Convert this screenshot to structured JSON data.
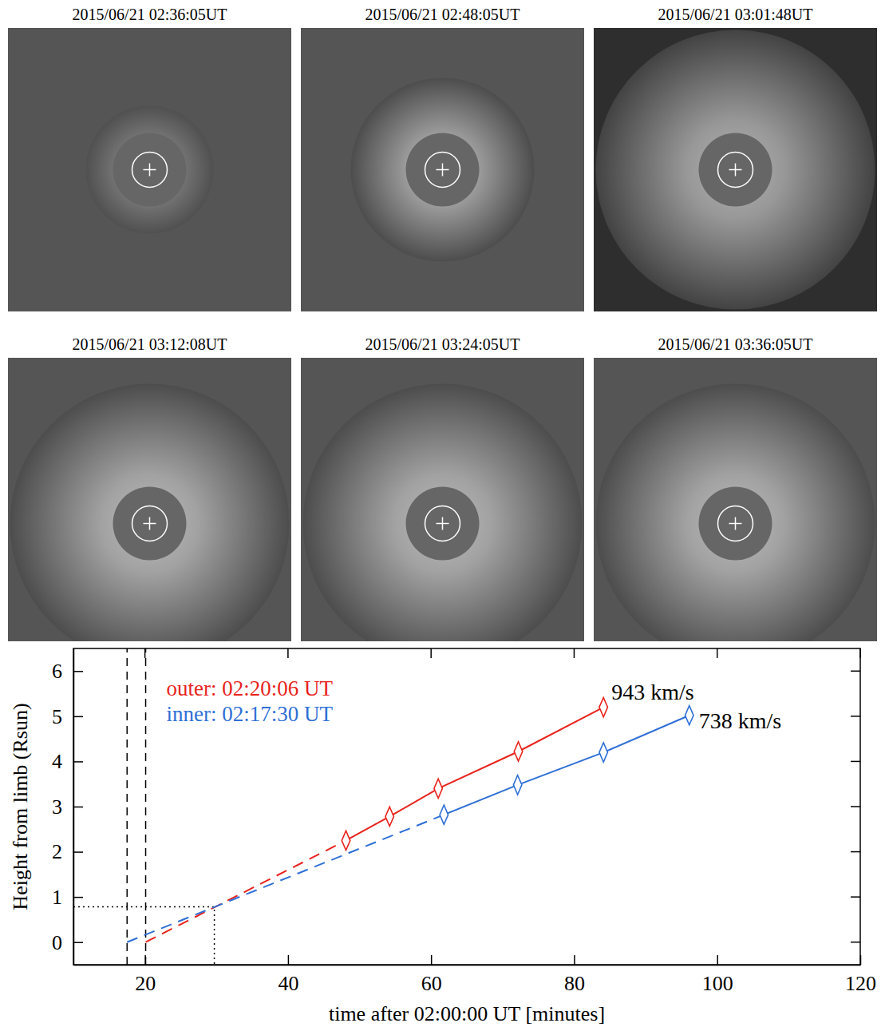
{
  "images": [
    {
      "title": "2015/06/21 02:36:05UT"
    },
    {
      "title": "2015/06/21 02:48:05UT"
    },
    {
      "title": "2015/06/21 03:01:48UT"
    },
    {
      "title": "2015/06/21 03:12:08UT"
    },
    {
      "title": "2015/06/21 03:24:05UT"
    },
    {
      "title": "2015/06/21 03:36:05UT"
    }
  ],
  "chart_data": {
    "type": "line",
    "xlabel": "time after 02:00:00 UT [minutes]",
    "ylabel": "Height from limb (Rsun)",
    "xlim": [
      10,
      120
    ],
    "xticks": [
      20,
      40,
      60,
      80,
      100,
      120
    ],
    "ylim": [
      -0.5,
      6.5
    ],
    "yticks": [
      0,
      1,
      2,
      3,
      4,
      5,
      6
    ],
    "legend": "upper left",
    "series": [
      {
        "name": "outer: 02:20:06 UT",
        "color": "#e8231c",
        "marker": "diamond",
        "line_style": "solid",
        "x": [
          48.1,
          54.2,
          61.0,
          72.2,
          84.1
        ],
        "values": [
          2.25,
          2.78,
          3.4,
          4.22,
          5.2
        ],
        "speed_label": "943 km/s",
        "extrapolation": {
          "x": [
            20.1,
            48.1
          ],
          "values": [
            0,
            2.25
          ]
        }
      },
      {
        "name": "inner: 02:17:30 UT",
        "color": "#2e6fd6",
        "marker": "diamond",
        "line_style": "solid",
        "x": [
          61.8,
          72.1,
          84.1,
          96.1
        ],
        "values": [
          2.82,
          3.48,
          4.2,
          5.02
        ],
        "speed_label": "738 km/s",
        "extrapolation": {
          "x": [
            17.5,
            61.8
          ],
          "values": [
            0,
            2.82
          ]
        }
      }
    ],
    "onset_times": [
      17.5,
      20.1
    ],
    "crossing": {
      "x": 29.7,
      "y": 0.78
    }
  }
}
